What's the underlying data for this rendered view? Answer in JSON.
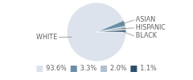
{
  "chart_data": {
    "type": "pie",
    "categories": [
      "WHITE",
      "ASIAN",
      "HISPANIC",
      "BLACK"
    ],
    "values": [
      93.6,
      3.3,
      2.0,
      1.1
    ],
    "value_labels": [
      "93.6%",
      "3.3%",
      "2.0%",
      "1.1%"
    ],
    "colors": [
      "#dce3ec",
      "#6b8fa8",
      "#b0bfcc",
      "#2d4f6b"
    ],
    "legend": "bottom"
  }
}
